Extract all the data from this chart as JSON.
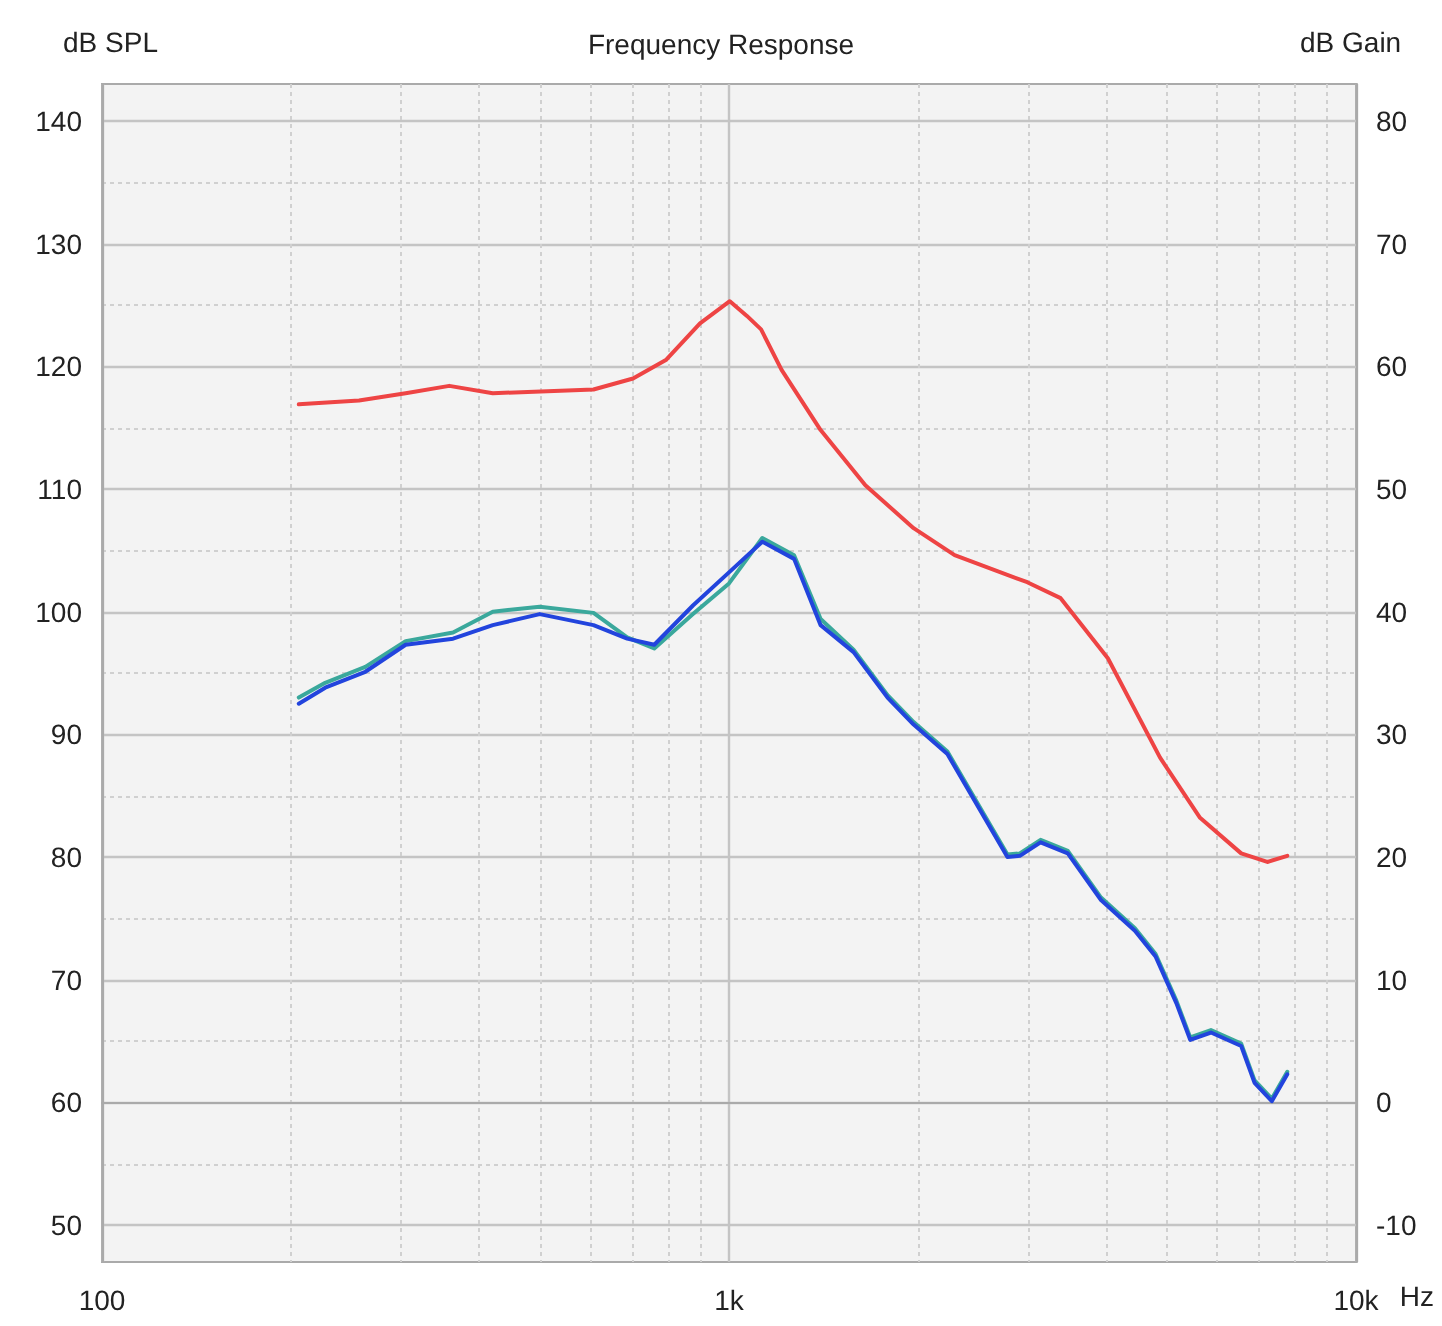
{
  "chart_data": {
    "type": "line",
    "title": "Frequency Response",
    "xlabel": "Hz",
    "ylabel": "dB SPL",
    "y2label": "dB Gain",
    "log": "x",
    "grid": true,
    "marker": "none",
    "line_style": "solid",
    "xlim": [
      100,
      10000
    ],
    "xticks": [
      {
        "value": 100,
        "label": "100"
      },
      {
        "value": 200,
        "label": null
      },
      {
        "value": 300,
        "label": null
      },
      {
        "value": 400,
        "label": null
      },
      {
        "value": 500,
        "label": null
      },
      {
        "value": 600,
        "label": null
      },
      {
        "value": 700,
        "label": null
      },
      {
        "value": 800,
        "label": null
      },
      {
        "value": 900,
        "label": null
      },
      {
        "value": 1000,
        "label": "1k"
      },
      {
        "value": 2000,
        "label": null
      },
      {
        "value": 3000,
        "label": null
      },
      {
        "value": 4000,
        "label": null
      },
      {
        "value": 5000,
        "label": null
      },
      {
        "value": 6000,
        "label": null
      },
      {
        "value": 7000,
        "label": null
      },
      {
        "value": 8000,
        "label": null
      },
      {
        "value": 9000,
        "label": null
      },
      {
        "value": 10000,
        "label": "10k"
      }
    ],
    "ylim": [
      47,
      143
    ],
    "yticks": [
      50,
      {
        "value": 55,
        "label": null
      },
      60,
      {
        "value": 65,
        "label": null
      },
      70,
      {
        "value": 75,
        "label": null
      },
      80,
      {
        "value": 85,
        "label": null
      },
      90,
      {
        "value": 95,
        "label": null
      },
      100,
      {
        "value": 105,
        "label": null
      },
      110,
      {
        "value": 115,
        "label": null
      },
      120,
      {
        "value": 125,
        "label": null
      },
      130,
      {
        "value": 135,
        "label": null
      },
      140
    ],
    "y2lim": [
      -13,
      83
    ],
    "y2ticks": [
      -10,
      0,
      10,
      20,
      30,
      40,
      50,
      60,
      70,
      80
    ],
    "series": [
      {
        "color": "#ee4444",
        "x": [
          206,
          257,
          305,
          358,
          420,
          608,
          703,
          793,
          899,
          1003,
          1068,
          1125,
          1213,
          1400,
          1650,
          1970,
          2290,
          2990,
          3380,
          4020,
          4870,
          5640,
          6560,
          7220,
          7770
        ],
        "values": [
          116.9,
          117.2,
          117.8,
          118.4,
          117.8,
          118.1,
          119.0,
          120.5,
          123.5,
          125.3,
          124.1,
          123.0,
          119.7,
          114.8,
          110.3,
          106.8,
          104.6,
          102.4,
          101.1,
          96.2,
          88.1,
          83.2,
          80.3,
          79.6,
          80.1
        ]
      },
      {
        "color": "#3aa89c",
        "x": [
          206,
          227,
          263,
          305,
          363,
          420,
          499,
          608,
          688,
          760,
          876,
          1000,
          1130,
          1270,
          1400,
          1580,
          1790,
          1970,
          2230,
          2780,
          2910,
          3140,
          3470,
          3920,
          4440,
          4790,
          5170,
          5440,
          5870,
          6560,
          6890,
          7340,
          7770
        ],
        "values": [
          93.0,
          94.2,
          95.5,
          97.6,
          98.3,
          100.0,
          100.4,
          99.9,
          97.9,
          97.0,
          99.8,
          102.3,
          106.0,
          104.6,
          99.4,
          96.9,
          93.2,
          91.0,
          88.6,
          80.2,
          80.3,
          81.4,
          80.5,
          76.7,
          74.2,
          72.1,
          68.3,
          65.3,
          65.9,
          64.8,
          61.8,
          60.3,
          62.5
        ]
      },
      {
        "color": "#2244dd",
        "x": [
          206,
          227,
          263,
          305,
          363,
          420,
          499,
          608,
          688,
          760,
          876,
          1000,
          1130,
          1270,
          1400,
          1580,
          1790,
          1970,
          2230,
          2780,
          2910,
          3140,
          3470,
          3920,
          4440,
          4790,
          5170,
          5440,
          5870,
          6560,
          6890,
          7340,
          7770
        ],
        "values": [
          92.5,
          93.8,
          95.1,
          97.3,
          97.8,
          98.9,
          99.8,
          98.9,
          97.8,
          97.3,
          100.5,
          103.2,
          105.7,
          104.3,
          98.9,
          96.7,
          93.0,
          90.8,
          88.4,
          80.0,
          80.1,
          81.2,
          80.3,
          76.5,
          74.0,
          71.9,
          68.1,
          65.1,
          65.7,
          64.6,
          61.6,
          60.1,
          62.3
        ]
      }
    ]
  }
}
